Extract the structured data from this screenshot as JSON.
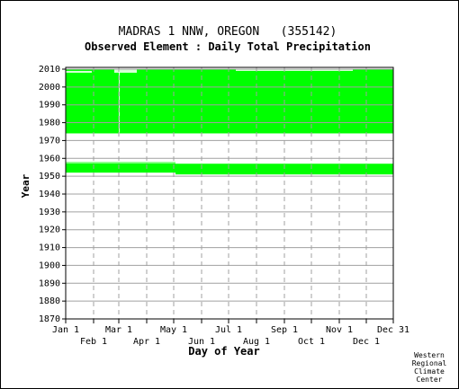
{
  "station_title": "MADRAS 1 NNW, OREGON   (355142)",
  "subtitle": "Observed Element : Daily Total Precipitation",
  "credit": [
    "Western",
    "Regional",
    "Climate",
    "Center"
  ],
  "colors": {
    "data": "#00ff00",
    "grid": "#a0a0a0",
    "axis": "#000000",
    "background": "#ffffff"
  },
  "chart_data": {
    "type": "heatmap",
    "description_of_marks": "filled where daily precipitation data exists",
    "title": "MADRAS 1 NNW, OREGON   (355142)",
    "subtitle": "Observed Element : Daily Total Precipitation",
    "xlabel": "Day of Year",
    "ylabel": "Year",
    "xlim": [
      1,
      365
    ],
    "ylim": [
      1870,
      2011
    ],
    "grid": true,
    "x_ticks_upper": [
      {
        "label": "Jan 1",
        "day": 1
      },
      {
        "label": "Mar 1",
        "day": 60
      },
      {
        "label": "May 1",
        "day": 121
      },
      {
        "label": "Jul 1",
        "day": 182
      },
      {
        "label": "Sep 1",
        "day": 244
      },
      {
        "label": "Nov 1",
        "day": 305
      },
      {
        "label": "Dec 31",
        "day": 365
      }
    ],
    "x_ticks_lower": [
      {
        "label": "Feb 1",
        "day": 32
      },
      {
        "label": "Apr 1",
        "day": 91
      },
      {
        "label": "Jun 1",
        "day": 152
      },
      {
        "label": "Aug 1",
        "day": 213
      },
      {
        "label": "Oct 1",
        "day": 274
      },
      {
        "label": "Dec 1",
        "day": 335
      }
    ],
    "y_ticks": [
      1870,
      1880,
      1890,
      1900,
      1910,
      1920,
      1930,
      1940,
      1950,
      1960,
      1970,
      1980,
      1990,
      2000,
      2010
    ],
    "coverage_blocks": [
      {
        "day_start": 1,
        "day_end": 365,
        "year_start": 1974,
        "year_end": 2010
      },
      {
        "day_start": 1,
        "day_end": 123,
        "year_start": 1952,
        "year_end": 1958
      },
      {
        "day_start": 123,
        "day_end": 365,
        "year_start": 1951,
        "year_end": 1957
      }
    ],
    "gaps": [
      {
        "day": 60,
        "year_start": 1974,
        "year_end": 2010
      },
      {
        "day_start": 1,
        "day_end": 30,
        "year_start": 2008,
        "year_end": 2009
      },
      {
        "day_start": 190,
        "day_end": 320,
        "year_start": 2009,
        "year_end": 2010
      },
      {
        "day_start": 55,
        "day_end": 80,
        "year_start": 2008,
        "year_end": 2010
      },
      {
        "day_start": 1,
        "day_end": 365,
        "year_start": 1957.3,
        "year_end": 1957.8
      }
    ]
  }
}
